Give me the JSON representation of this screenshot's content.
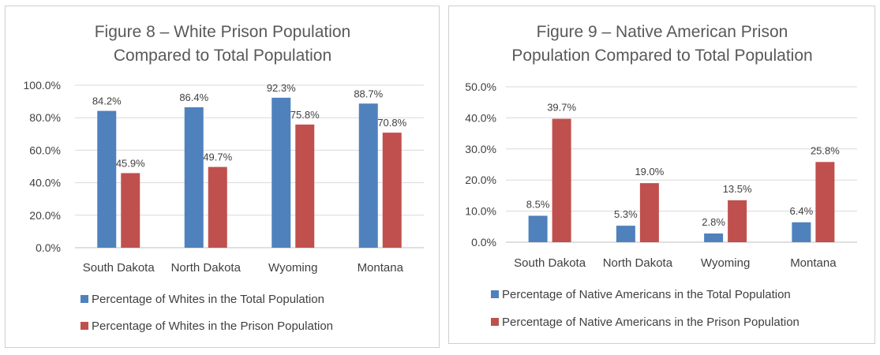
{
  "chart_data": [
    {
      "type": "bar",
      "title_lines": [
        "Figure 8 – White Prison Population",
        "Compared to Total Population"
      ],
      "categories": [
        "South Dakota",
        "North Dakota",
        "Wyoming",
        "Montana"
      ],
      "ylim": [
        0,
        100
      ],
      "yticks": [
        "0.0%",
        "20.0%",
        "40.0%",
        "60.0%",
        "80.0%",
        "100.0%"
      ],
      "grid": true,
      "legend_position": "bottom",
      "series": [
        {
          "name": "Percentage of Whites in the Total Population",
          "color": "#4f81bd",
          "values": [
            84.2,
            86.4,
            92.3,
            88.7
          ],
          "labels": [
            "84.2%",
            "86.4%",
            "92.3%",
            "88.7%"
          ]
        },
        {
          "name": "Percentage of Whites in the Prison Population",
          "color": "#c0504d",
          "values": [
            45.9,
            49.7,
            75.8,
            70.8
          ],
          "labels": [
            "45.9%",
            "49.7%",
            "75.8%",
            "70.8%"
          ]
        }
      ]
    },
    {
      "type": "bar",
      "title_lines": [
        "Figure 9 – Native American Prison",
        "Population Compared to Total Population"
      ],
      "categories": [
        "South Dakota",
        "North Dakota",
        "Wyoming",
        "Montana"
      ],
      "ylim": [
        0,
        50
      ],
      "yticks": [
        "0.0%",
        "10.0%",
        "20.0%",
        "30.0%",
        "40.0%",
        "50.0%"
      ],
      "grid": true,
      "legend_position": "bottom",
      "series": [
        {
          "name": "Percentage of Native Americans in the Total Population",
          "color": "#4f81bd",
          "values": [
            8.5,
            5.3,
            2.8,
            6.4
          ],
          "labels": [
            "8.5%",
            "5.3%",
            "2.8%",
            "6.4%"
          ]
        },
        {
          "name": "Percentage of Native Americans in the Prison Population",
          "color": "#c0504d",
          "values": [
            39.7,
            19.0,
            13.5,
            25.8
          ],
          "labels": [
            "39.7%",
            "19.0%",
            "13.5%",
            "25.8%"
          ]
        }
      ]
    }
  ]
}
